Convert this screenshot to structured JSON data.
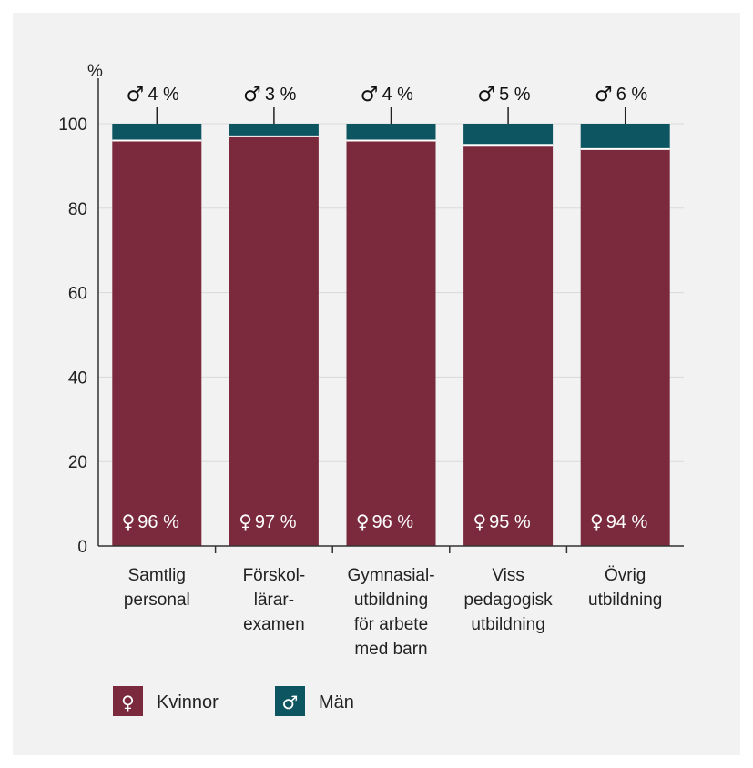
{
  "chart_data": {
    "type": "bar",
    "stacked": true,
    "unit_label": "%",
    "ylim": [
      0,
      100
    ],
    "yticks": [
      0,
      20,
      40,
      60,
      80,
      100
    ],
    "grid": true,
    "categories": [
      [
        "Samtlig",
        "personal"
      ],
      [
        "Förskol-",
        "lärar-",
        "examen"
      ],
      [
        "Gymnasial-",
        "utbildning",
        "för arbete",
        "med barn"
      ],
      [
        "Viss",
        "pedagogisk",
        "utbildning"
      ],
      [
        "Övrig",
        "utbildning"
      ]
    ],
    "series": [
      {
        "name": "Kvinnor",
        "symbol": "♀",
        "color": "#7b2a3e",
        "values": [
          96,
          97,
          96,
          95,
          94
        ],
        "labels": [
          "96 %",
          "97 %",
          "96 %",
          "95 %",
          "94 %"
        ]
      },
      {
        "name": "Män",
        "symbol": "♂",
        "color": "#0d5561",
        "values": [
          4,
          3,
          4,
          5,
          6
        ],
        "labels": [
          "4 %",
          "3 %",
          "4 %",
          "5 %",
          "6 %"
        ]
      }
    ],
    "legend_position": "bottom-left",
    "colors": {
      "background": "#f2f2f2",
      "separator": "#ffffff",
      "axis": "#333333",
      "grid": "#d9d9d9"
    }
  }
}
